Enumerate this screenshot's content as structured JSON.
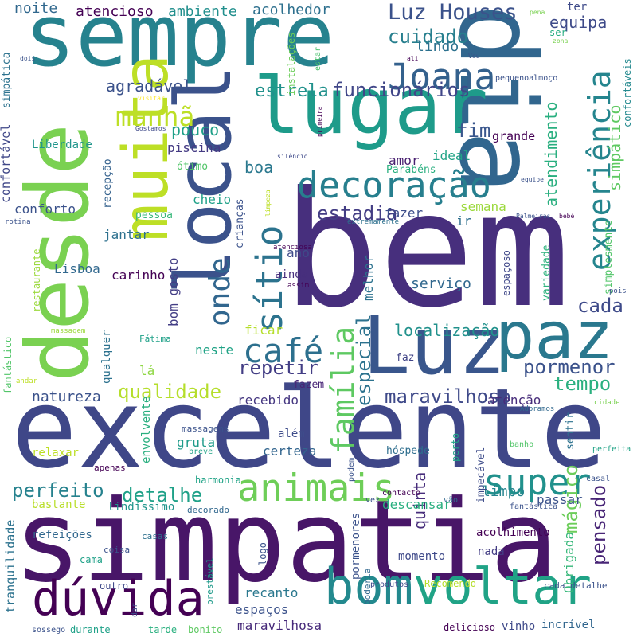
{
  "words": [
    {
      "t": "bem",
      "c": "#472f7d"
    },
    {
      "t": "excelente",
      "c": "#3f4788"
    },
    {
      "t": "simpatia",
      "c": "#481668"
    },
    {
      "t": "sempre",
      "c": "#26828e"
    },
    {
      "t": "dia",
      "c": "#31668e"
    },
    {
      "t": "desde",
      "c": "#7ad151"
    },
    {
      "t": "lugar",
      "c": "#1e9b8a"
    },
    {
      "t": "local",
      "c": "#3b528b"
    },
    {
      "t": "muita",
      "c": "#bddf26"
    },
    {
      "t": "Luz",
      "c": "#39568c"
    },
    {
      "t": "paz",
      "c": "#2a788e"
    },
    {
      "t": "bom",
      "c": "#23898e"
    },
    {
      "t": "voltar",
      "c": "#20a386"
    },
    {
      "t": "dúvida",
      "c": "#440154"
    },
    {
      "t": "animais",
      "c": "#6ece58"
    },
    {
      "t": "decoração",
      "c": "#277f8e"
    },
    {
      "t": "experiência",
      "c": "#25858e"
    },
    {
      "t": "sítio",
      "c": "#2c738e"
    },
    {
      "t": "café",
      "c": "#2d708e"
    },
    {
      "t": "família",
      "c": "#5ec962"
    },
    {
      "t": "super",
      "c": "#21918c"
    },
    {
      "t": "Joana",
      "c": "#34618d"
    },
    {
      "t": "Luz Houses",
      "c": "#3b528b"
    },
    {
      "t": "manhã",
      "c": "#bddf26"
    },
    {
      "t": "onde",
      "c": "#31668e"
    },
    {
      "t": "qualidade",
      "c": "#b5de2b"
    },
    {
      "t": "repetir",
      "c": "#433e85"
    },
    {
      "t": "maravilhoso",
      "c": "#3e4989"
    },
    {
      "t": "perfeito",
      "c": "#26828e"
    },
    {
      "t": "detalhe",
      "c": "#1fa188"
    },
    {
      "t": "pormenor",
      "c": "#3b528b"
    },
    {
      "t": "tempo",
      "c": "#2ab07f"
    },
    {
      "t": "funcionários",
      "c": "#404688"
    },
    {
      "t": "cuidado",
      "c": "#277f8e"
    },
    {
      "t": "estrela",
      "c": "#21918c"
    },
    {
      "t": "atendimento",
      "c": "#29af7f"
    },
    {
      "t": "simpático",
      "c": "#5ec962"
    },
    {
      "t": "estadia",
      "c": "#433d84"
    },
    {
      "t": "especial",
      "c": "#2c728e"
    },
    {
      "t": "localização",
      "c": "#21918c"
    },
    {
      "t": "cada",
      "c": "#3e4a89"
    },
    {
      "t": "pensado",
      "c": "#482576"
    },
    {
      "t": "mágico",
      "c": "#6ccd5a"
    },
    {
      "t": "quinta",
      "c": "#472d7b"
    },
    {
      "t": "Obrigada",
      "c": "#35b779"
    },
    {
      "t": "boa",
      "c": "#2a788e"
    },
    {
      "t": "fim",
      "c": "#39568c"
    },
    {
      "t": "pouco",
      "c": "#1fa088"
    },
    {
      "t": "equipa",
      "c": "#3e4a89"
    },
    {
      "t": "agradável",
      "c": "#3b528b"
    },
    {
      "t": "atencioso",
      "c": "#440154"
    },
    {
      "t": "ambiente",
      "c": "#218f8d"
    },
    {
      "t": "acolhedor",
      "c": "#2d708e"
    },
    {
      "t": "noite",
      "c": "#31688e"
    },
    {
      "t": "lindo",
      "c": "#2c718e"
    },
    {
      "t": "ter",
      "c": "#3e4a89"
    },
    {
      "t": "ser",
      "c": "#26ad81"
    },
    {
      "t": "piscina",
      "c": "#443a83"
    },
    {
      "t": "grande",
      "c": "#440154"
    },
    {
      "t": "amor",
      "c": "#481f70"
    },
    {
      "t": "ideal",
      "c": "#20a386"
    },
    {
      "t": "cheio",
      "c": "#1fa188"
    },
    {
      "t": "semana",
      "c": "#9bd93c"
    },
    {
      "t": "ir",
      "c": "#2e6f8e"
    },
    {
      "t": "fazer",
      "c": "#3d4e8a"
    },
    {
      "t": "Parabéns",
      "c": "#29af7f"
    },
    {
      "t": "conforto",
      "c": "#3b528b"
    },
    {
      "t": "jantar",
      "c": "#2d708e"
    },
    {
      "t": "ótimo",
      "c": "#52c569"
    },
    {
      "t": "pessoa",
      "c": "#35b779"
    },
    {
      "t": "Lisboa",
      "c": "#31688e"
    },
    {
      "t": "carinho",
      "c": "#440154"
    },
    {
      "t": "bom gosto",
      "c": "#433e85"
    },
    {
      "t": "ano",
      "c": "#3e4a89"
    },
    {
      "t": "ainda",
      "c": "#472f7d"
    },
    {
      "t": "serviço",
      "c": "#31688e"
    },
    {
      "t": "melhor",
      "c": "#2c728e"
    },
    {
      "t": "espaçoso",
      "c": "#3f4788"
    },
    {
      "t": "neste",
      "c": "#20a386"
    },
    {
      "t": "ficar",
      "c": "#b5de2b"
    },
    {
      "t": "lá",
      "c": "#8fd744"
    },
    {
      "t": "natureza",
      "c": "#3b528b"
    },
    {
      "t": "recebido",
      "c": "#453781"
    },
    {
      "t": "fazem",
      "c": "#482677"
    },
    {
      "t": "faz",
      "c": "#414487"
    },
    {
      "t": "atenção",
      "c": "#472c7a"
    },
    {
      "t": "gruta",
      "c": "#1e9b8a"
    },
    {
      "t": "além",
      "c": "#3e4c8a"
    },
    {
      "t": "certeza",
      "c": "#32658e"
    },
    {
      "t": "relaxar",
      "c": "#bddf26"
    },
    {
      "t": "descansar",
      "c": "#29af7f"
    },
    {
      "t": "limpo",
      "c": "#25848e"
    },
    {
      "t": "passar",
      "c": "#3b528b"
    },
    {
      "t": "hóspede",
      "c": "#2e6e8e"
    },
    {
      "t": "bastante",
      "c": "#b8de29"
    },
    {
      "t": "lindíssimo",
      "c": "#1f958b"
    },
    {
      "t": "refeições",
      "c": "#31688e"
    },
    {
      "t": "nada",
      "c": "#433d84"
    },
    {
      "t": "momento",
      "c": "#3e4989"
    },
    {
      "t": "acolhimento",
      "c": "#440154"
    },
    {
      "t": "espaços",
      "c": "#3b528b"
    },
    {
      "t": "recanto",
      "c": "#2a788e"
    },
    {
      "t": "maravilhosa",
      "c": "#472a7a"
    },
    {
      "t": "delicioso",
      "c": "#440154"
    },
    {
      "t": "vinho",
      "c": "#3e4989"
    },
    {
      "t": "incrível",
      "c": "#31668e"
    },
    {
      "t": "cama",
      "c": "#1fa188"
    },
    {
      "t": "tranquilidade",
      "c": "#2c728e"
    },
    {
      "t": "pormenores",
      "c": "#3b528b"
    },
    {
      "t": "confortável",
      "c": "#3f4788"
    },
    {
      "t": "Liberdade",
      "c": "#1f958b"
    },
    {
      "t": "simpática",
      "c": "#2c728e"
    },
    {
      "t": "restaurante",
      "c": "#9bd93c"
    },
    {
      "t": "recepção",
      "c": "#34618d"
    },
    {
      "t": "crianças",
      "c": "#3b528b"
    },
    {
      "t": "instalações",
      "c": "#6ccd5a"
    },
    {
      "t": "estar",
      "c": "#4ac16d"
    },
    {
      "t": "fantástico",
      "c": "#52c569"
    },
    {
      "t": "envolvente",
      "c": "#29af7f"
    },
    {
      "t": "qualquer",
      "c": "#2c718e"
    },
    {
      "t": "variedade",
      "c": "#2db27d"
    },
    {
      "t": "simplesmente",
      "c": "#52c569"
    },
    {
      "t": "confortáveis",
      "c": "#23898e"
    },
    {
      "t": "sentir",
      "c": "#2c718e"
    },
    {
      "t": "impecável",
      "c": "#3e4c8a"
    },
    {
      "t": "perto",
      "c": "#20a386"
    },
    {
      "t": "prestável",
      "c": "#1f9a8a"
    },
    {
      "t": "poderia",
      "c": "#31688e"
    },
    {
      "t": "logo",
      "c": "#3b528b"
    },
    {
      "t": "Recomendo",
      "c": "#b5de2b"
    },
    {
      "t": "Fátima",
      "c": "#1fa188"
    },
    {
      "t": "harmonia",
      "c": "#20a386"
    },
    {
      "t": "massagens",
      "c": "#3b528b"
    },
    {
      "t": "decorado",
      "c": "#31688e"
    },
    {
      "t": "outro",
      "c": "#3e4989"
    },
    {
      "t": "coisa",
      "c": "#3b528b"
    },
    {
      "t": "casas",
      "c": "#2d708e"
    },
    {
      "t": "apenas",
      "c": "#440154"
    },
    {
      "t": "durante",
      "c": "#1fa188"
    },
    {
      "t": "tarde",
      "c": "#2ab07f"
    },
    {
      "t": "bonito",
      "c": "#5ec962"
    },
    {
      "t": "produtos",
      "c": "#3e4989"
    },
    {
      "t": "cada detalhe",
      "c": "#3b528b"
    },
    {
      "t": "sossego",
      "c": "#3b528b"
    },
    {
      "t": "dar",
      "c": "#3e4989"
    },
    {
      "t": "breve",
      "c": "#20a386"
    },
    {
      "t": "banho",
      "c": "#52c569"
    },
    {
      "t": "perfeita",
      "c": "#20a386"
    },
    {
      "t": "casal",
      "c": "#3b528b"
    },
    {
      "t": "vez",
      "c": "#3b528b"
    },
    {
      "t": "podem",
      "c": "#3b528b"
    },
    {
      "t": "contacto",
      "c": "#440154"
    },
    {
      "t": "vão",
      "c": "#31688e"
    },
    {
      "t": "fantástica",
      "c": "#3b528b"
    },
    {
      "t": "Adoramos",
      "c": "#31688e"
    },
    {
      "t": "cidade",
      "c": "#7ad151"
    },
    {
      "t": "andar",
      "c": "#bddf26"
    },
    {
      "t": "massagem",
      "c": "#9bd93c"
    },
    {
      "t": "rotina",
      "c": "#3b528b"
    },
    {
      "t": "pois",
      "c": "#3b528b"
    },
    {
      "t": "limpeza",
      "c": "#bddf26"
    },
    {
      "t": "atenciosa",
      "c": "#440154"
    },
    {
      "t": "assim",
      "c": "#440154"
    },
    {
      "t": "extremamente",
      "c": "#2d708e"
    },
    {
      "t": "Palmeiras",
      "c": "#3b528b"
    },
    {
      "t": "bebé",
      "c": "#440154"
    },
    {
      "t": "equipe",
      "c": "#3b528b"
    },
    {
      "t": "silêncio",
      "c": "#3e4989"
    },
    {
      "t": "primeira",
      "c": "#440154"
    },
    {
      "t": "Gostamos",
      "c": "#3e4989"
    },
    {
      "t": "visitar",
      "c": "#fde725"
    },
    {
      "t": "pequenoalmoço",
      "c": "#3b528b"
    },
    {
      "t": "Vou",
      "c": "#3b528b"
    },
    {
      "t": "ali",
      "c": "#440154"
    },
    {
      "t": "dois",
      "c": "#3b528b"
    },
    {
      "t": "pena",
      "c": "#7ad151"
    },
    {
      "t": "zona",
      "c": "#7ad151"
    }
  ]
}
